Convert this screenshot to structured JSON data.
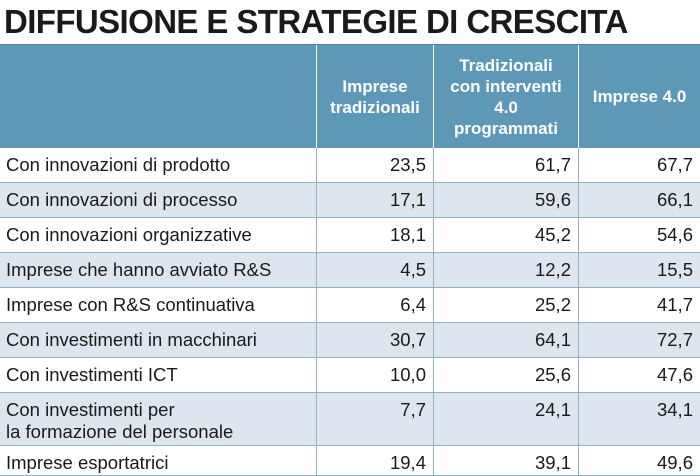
{
  "title": "DIFFUSIONE E STRATEGIE DI CRESCITA",
  "columns": [
    "",
    "Imprese\ntradizionali",
    "Tradizionali\ncon interventi\n4.0\nprogrammati",
    "Imprese 4.0"
  ],
  "rows": [
    {
      "label": "Con innovazioni di prodotto",
      "v1": "23,5",
      "v2": "61,7",
      "v3": "67,7"
    },
    {
      "label": "Con innovazioni di processo",
      "v1": "17,1",
      "v2": "59,6",
      "v3": "66,1"
    },
    {
      "label": "Con innovazioni organizzative",
      "v1": "18,1",
      "v2": "45,2",
      "v3": "54,6"
    },
    {
      "label": "Imprese che hanno avviato R&S",
      "v1": "4,5",
      "v2": "12,2",
      "v3": "15,5"
    },
    {
      "label": "Imprese con R&S continuativa",
      "v1": "6,4",
      "v2": "25,2",
      "v3": "41,7"
    },
    {
      "label": "Con investimenti in macchinari",
      "v1": "30,7",
      "v2": "64,1",
      "v3": "72,7"
    },
    {
      "label": "Con investimenti ICT",
      "v1": "10,0",
      "v2": "25,6",
      "v3": "47,6"
    },
    {
      "label": "Con investimenti per\nla formazione del personale",
      "v1": "7,7",
      "v2": "24,1",
      "v3": "34,1"
    },
    {
      "label": "Imprese esportatrici",
      "v1": "19,4",
      "v2": "39,1",
      "v3": "49,6"
    }
  ],
  "colors": {
    "header_bg": "#5e98b7",
    "header_text": "#ffffff",
    "row_alt_bg": "#dde5ef",
    "row_bg": "#ffffff",
    "grid_line": "#8fb4c9"
  }
}
